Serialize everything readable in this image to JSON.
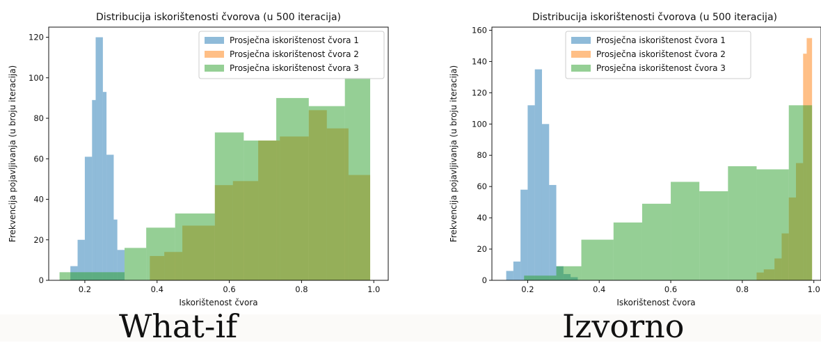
{
  "captions": {
    "left": "What-if",
    "right": "Izvorno"
  },
  "colors": {
    "series1": "#1f77b4",
    "series2": "#ff7f0e",
    "series3": "#2ca02c"
  },
  "chart_data": [
    {
      "type": "histogram",
      "title": "Distribucija iskorištenosti čvorova (u 500 iteracija)",
      "xlabel": "Iskorištenost čvora",
      "ylabel": "Frekvencija pojavljivanja (u broju iteracija)",
      "xlim": [
        0.1,
        1.04
      ],
      "ylim": [
        0,
        125
      ],
      "xticks": [
        "0.2",
        "0.4",
        "0.6",
        "0.8",
        "1.0"
      ],
      "yticks": [
        "0",
        "20",
        "40",
        "60",
        "80",
        "100",
        "120"
      ],
      "legend_position": "top-right",
      "series": [
        {
          "name": "Prosječna iskorištenost čvora 1",
          "bins": [
            [
              0.16,
              0.18,
              7
            ],
            [
              0.18,
              0.2,
              20
            ],
            [
              0.2,
              0.22,
              61
            ],
            [
              0.22,
              0.23,
              89
            ],
            [
              0.23,
              0.25,
              120
            ],
            [
              0.25,
              0.26,
              93
            ],
            [
              0.26,
              0.28,
              62
            ],
            [
              0.28,
              0.29,
              30
            ],
            [
              0.29,
              0.31,
              15
            ]
          ]
        },
        {
          "name": "Prosječna iskorištenost čvora 2",
          "bins": [
            [
              0.38,
              0.42,
              12
            ],
            [
              0.42,
              0.47,
              14
            ],
            [
              0.47,
              0.56,
              27
            ],
            [
              0.56,
              0.61,
              47
            ],
            [
              0.61,
              0.68,
              49
            ],
            [
              0.68,
              0.74,
              69
            ],
            [
              0.74,
              0.82,
              71
            ],
            [
              0.82,
              0.87,
              84
            ],
            [
              0.87,
              0.93,
              75
            ],
            [
              0.93,
              0.99,
              52
            ]
          ]
        },
        {
          "name": "Prosječna iskorištenost čvora 3",
          "bins": [
            [
              0.13,
              0.15,
              4
            ],
            [
              0.15,
              0.31,
              4
            ],
            [
              0.31,
              0.37,
              16
            ],
            [
              0.37,
              0.45,
              26
            ],
            [
              0.45,
              0.56,
              33
            ],
            [
              0.56,
              0.64,
              73
            ],
            [
              0.64,
              0.73,
              69
            ],
            [
              0.73,
              0.82,
              90
            ],
            [
              0.82,
              0.92,
              86
            ],
            [
              0.92,
              0.99,
              100
            ]
          ]
        }
      ]
    },
    {
      "type": "histogram",
      "title": "Distribucija iskorištenosti čvorova (u 500 iteracija)",
      "xlabel": "Iskorištenost čvora",
      "ylabel": "Frekvencija pojavljivanja (u broju iteracija)",
      "xlim": [
        0.1,
        1.02
      ],
      "ylim": [
        0,
        162
      ],
      "xticks": [
        "0.2",
        "0.4",
        "0.6",
        "0.8",
        "1.0"
      ],
      "yticks": [
        "0",
        "20",
        "40",
        "60",
        "80",
        "100",
        "120",
        "140",
        "160"
      ],
      "legend_position": "top-center",
      "series": [
        {
          "name": "Prosječna iskorištenost čvora 1",
          "bins": [
            [
              0.14,
              0.16,
              6
            ],
            [
              0.16,
              0.18,
              12
            ],
            [
              0.18,
              0.2,
              58
            ],
            [
              0.2,
              0.22,
              112
            ],
            [
              0.22,
              0.24,
              135
            ],
            [
              0.24,
              0.26,
              100
            ],
            [
              0.26,
              0.28,
              61
            ],
            [
              0.28,
              0.3,
              9
            ],
            [
              0.3,
              0.32,
              4
            ],
            [
              0.32,
              0.34,
              2
            ]
          ]
        },
        {
          "name": "Prosječna iskorištenost čvora 2",
          "bins": [
            [
              0.84,
              0.86,
              5
            ],
            [
              0.86,
              0.89,
              7
            ],
            [
              0.89,
              0.91,
              14
            ],
            [
              0.91,
              0.93,
              30
            ],
            [
              0.93,
              0.95,
              53
            ],
            [
              0.95,
              0.97,
              75
            ],
            [
              0.97,
              0.98,
              145
            ],
            [
              0.98,
              0.995,
              155
            ]
          ]
        },
        {
          "name": "Prosječna iskorištenost čvora 3",
          "bins": [
            [
              0.19,
              0.28,
              3
            ],
            [
              0.28,
              0.35,
              9
            ],
            [
              0.35,
              0.44,
              26
            ],
            [
              0.44,
              0.52,
              37
            ],
            [
              0.52,
              0.6,
              49
            ],
            [
              0.6,
              0.68,
              63
            ],
            [
              0.68,
              0.76,
              57
            ],
            [
              0.76,
              0.84,
              73
            ],
            [
              0.84,
              0.93,
              71
            ],
            [
              0.93,
              0.995,
              112
            ]
          ]
        }
      ]
    }
  ]
}
